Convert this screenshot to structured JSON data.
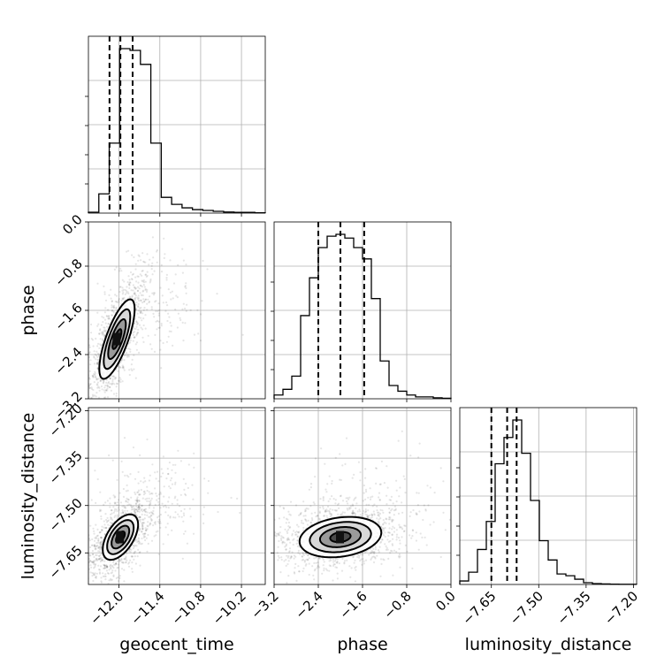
{
  "chart_data": {
    "type": "corner",
    "parameters": [
      {
        "name": "geocent_time",
        "label": "geocent_time",
        "range": [
          -12.45,
          -9.85
        ],
        "ticks": [
          -12.0,
          -11.4,
          -10.8,
          -10.2
        ],
        "tick_labels": [
          "−12.0",
          "−11.4",
          "−10.8",
          "−10.2"
        ],
        "median": -11.98,
        "quantiles": [
          -12.14,
          -11.8
        ],
        "hist_bins": 17,
        "hist_values": [
          0.005,
          0.11,
          0.4,
          0.94,
          0.93,
          0.85,
          0.4,
          0.09,
          0.05,
          0.03,
          0.02,
          0.015,
          0.01,
          0.006,
          0.004,
          0.004,
          0.002
        ]
      },
      {
        "name": "phase",
        "label": "phase",
        "range": [
          -3.2,
          0.0
        ],
        "ticks": [
          -3.2,
          -2.4,
          -1.6,
          -0.8,
          0.0
        ],
        "tick_labels": [
          "−3.2",
          "−2.4",
          "−1.6",
          "−0.8",
          "0.0"
        ],
        "median": -2.0,
        "quantiles": [
          -2.4,
          -1.57
        ],
        "hist_bins": 20,
        "hist_values": [
          0.02,
          0.05,
          0.12,
          0.44,
          0.64,
          0.8,
          0.86,
          0.87,
          0.85,
          0.8,
          0.74,
          0.53,
          0.2,
          0.07,
          0.04,
          0.02,
          0.01,
          0.01,
          0.005,
          0.003
        ]
      },
      {
        "name": "luminosity_distance",
        "label": "luminosity_distance",
        "range": [
          -7.75,
          -7.19
        ],
        "ticks": [
          -7.65,
          -7.5,
          -7.35,
          -7.2
        ],
        "tick_labels": [
          "−7.65",
          "−7.50",
          "−7.35",
          "−7.20"
        ],
        "median": -7.6,
        "quantiles": [
          -7.65,
          -7.57
        ],
        "hist_bins": 20,
        "hist_values": [
          0.02,
          0.07,
          0.2,
          0.36,
          0.69,
          0.84,
          0.94,
          0.75,
          0.48,
          0.25,
          0.14,
          0.06,
          0.05,
          0.03,
          0.01,
          0.005,
          0.003,
          0.002,
          0.001,
          0.001
        ]
      }
    ],
    "pairs": [
      {
        "x": "geocent_time",
        "y": "phase",
        "mean": [
          -12.03,
          -2.12
        ],
        "sd": [
          0.13,
          0.36
        ],
        "correlation": 0.75,
        "tail_center": [
          -11.5,
          -1.55
        ],
        "tail_sd": [
          0.45,
          0.45
        ]
      },
      {
        "x": "geocent_time",
        "y": "luminosity_distance",
        "mean": [
          -11.98,
          -7.6
        ],
        "sd": [
          0.13,
          0.036
        ],
        "correlation": 0.55,
        "tail_center": [
          -11.5,
          -7.48
        ],
        "tail_sd": [
          0.45,
          0.07
        ]
      },
      {
        "x": "phase",
        "y": "luminosity_distance",
        "mean": [
          -2.0,
          -7.6
        ],
        "sd": [
          0.37,
          0.032
        ],
        "correlation": 0.22,
        "tail_center": [
          -1.6,
          -7.5
        ],
        "tail_sd": [
          0.7,
          0.08
        ]
      }
    ],
    "contour_levels_sigma": [
      0.5,
      1.0,
      1.5,
      2.0
    ],
    "quantile_levels": [
      0.16,
      0.5,
      0.84
    ],
    "grid": true,
    "legend": "none"
  }
}
